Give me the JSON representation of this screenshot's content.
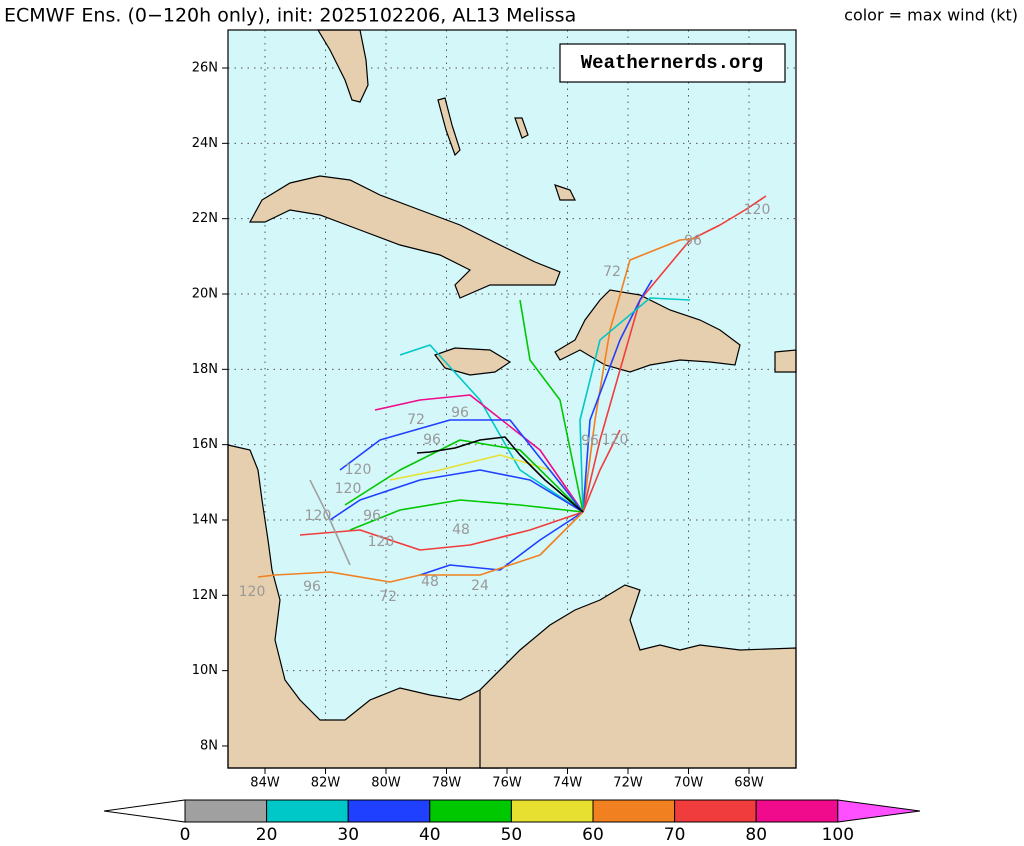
{
  "header": {
    "title": "ECMWF Ens. (0−120h only), init: 2025102206, AL13 Melissa",
    "legend_note": "color = max wind (kt)"
  },
  "map": {
    "watermark": "Weathernerds.org",
    "lat_labels": [
      "26N",
      "24N",
      "22N",
      "20N",
      "18N",
      "16N",
      "14N",
      "12N",
      "10N",
      "8N"
    ],
    "lon_labels": [
      "84W",
      "82W",
      "80W",
      "78W",
      "76W",
      "74W",
      "72W",
      "70W",
      "68W"
    ],
    "hour_labels": [
      "120",
      "96",
      "72",
      "120",
      "96",
      "96",
      "72",
      "96",
      "120",
      "120",
      "120",
      "96",
      "120",
      "48",
      "120",
      "96",
      "72",
      "48",
      "24"
    ]
  },
  "colorbar": {
    "ticks": [
      "0",
      "20",
      "30",
      "40",
      "50",
      "60",
      "70",
      "80",
      "100"
    ],
    "colors": [
      "#ffffff",
      "#a0a0a0",
      "#00c8c8",
      "#2040ff",
      "#00c800",
      "#e8e030",
      "#f08020",
      "#f03c3c",
      "#f00a8c",
      "#ff50ff"
    ]
  }
}
